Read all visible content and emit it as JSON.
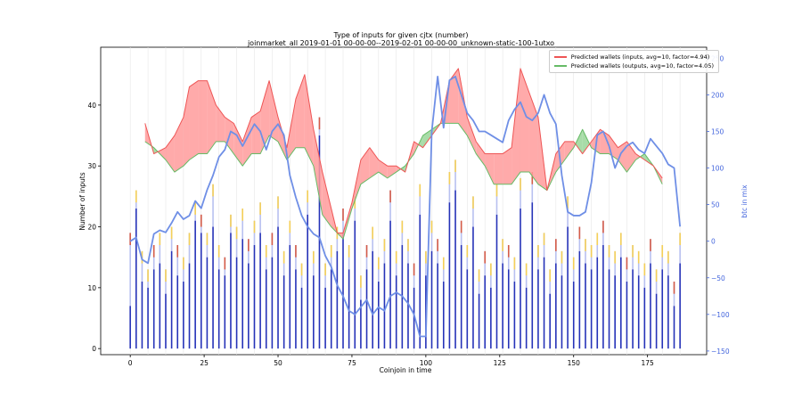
{
  "chart_data": {
    "type": "bar+line+area",
    "title": "Type of inputs for given cjtx (number)",
    "subtitle": "joinmarket_all 2019-01-01 00-00-00--2019-02-01 00-00-00_unknown-static-100-1utxo",
    "xlabel": "Coinjoin in time",
    "ylabel": "Number of inputs",
    "y2label": "btc in mix",
    "xlim": [
      -10,
      195
    ],
    "ylim": [
      -1,
      49.5
    ],
    "y2lim": [
      -155,
      265
    ],
    "xticks": [
      0,
      25,
      50,
      75,
      100,
      125,
      150,
      175
    ],
    "yticks": [
      0,
      10,
      20,
      30,
      40
    ],
    "y2ticks": [
      -150,
      -100,
      -50,
      0,
      50,
      100,
      150,
      200,
      250
    ],
    "legend_position": "top-right",
    "colors": {
      "inputs_line": "#ee5555",
      "inputs_fill": "#ff9b9b",
      "outputs_line": "#66bb66",
      "outputs_fill": "#99d699",
      "btc_line": "#6f8fe6",
      "bar_main": "#2633b8",
      "bar_light": "#b8c0f0",
      "bar_yellow": "#ffd23c",
      "bar_red": "#d94a2a"
    },
    "series": [
      {
        "name": "Predicted wallets (inputs, avg=10, factor=4.94)",
        "x": [
          5,
          8,
          12,
          15,
          18,
          20,
          23,
          26,
          29,
          32,
          35,
          38,
          41,
          44,
          47,
          50,
          53,
          56,
          59,
          62,
          65,
          68,
          70,
          72,
          75,
          78,
          81,
          84,
          87,
          90,
          93,
          96,
          99,
          102,
          105,
          108,
          111,
          114,
          117,
          120,
          123,
          126,
          129,
          132,
          135,
          138,
          141,
          144,
          147,
          150,
          153,
          156,
          159,
          162,
          165,
          168,
          171,
          174,
          177,
          180
        ],
        "values": [
          37,
          32,
          33,
          35,
          38,
          43,
          44,
          44,
          40,
          38,
          37,
          34,
          38,
          39,
          44,
          38,
          33,
          41,
          45,
          36,
          29,
          23,
          19,
          19,
          24,
          31,
          33,
          31,
          30,
          30,
          29,
          34,
          33,
          35,
          37,
          44,
          46,
          38,
          34,
          32,
          32,
          32,
          33,
          46,
          42,
          38,
          26,
          32,
          34,
          34,
          32,
          34,
          36,
          35,
          33,
          34,
          32,
          31,
          30,
          28
        ]
      },
      {
        "name": "Predicted wallets (outputs, avg=10, factor=4.05)",
        "x": [
          5,
          8,
          12,
          15,
          18,
          20,
          23,
          26,
          29,
          32,
          35,
          38,
          41,
          44,
          47,
          50,
          53,
          56,
          59,
          62,
          65,
          68,
          70,
          72,
          75,
          78,
          81,
          84,
          87,
          90,
          93,
          96,
          99,
          102,
          105,
          108,
          111,
          114,
          117,
          120,
          123,
          126,
          129,
          132,
          135,
          138,
          141,
          144,
          147,
          150,
          153,
          156,
          159,
          162,
          165,
          168,
          171,
          174,
          177,
          180
        ],
        "values": [
          34,
          33,
          31,
          29,
          30,
          31,
          32,
          32,
          34,
          34,
          32,
          30,
          32,
          32,
          35,
          34,
          31,
          33,
          33,
          30,
          22,
          20,
          19,
          18,
          23,
          27,
          28,
          29,
          28,
          29,
          30,
          32,
          35,
          36,
          37,
          37,
          37,
          35,
          32,
          30,
          27,
          27,
          27,
          29,
          29,
          27,
          26,
          29,
          31,
          33,
          36,
          33,
          32,
          32,
          31,
          29,
          31,
          32,
          30,
          27
        ]
      },
      {
        "name": "btc in mix",
        "axis": "right",
        "x": [
          0,
          2,
          4,
          6,
          8,
          10,
          12,
          14,
          16,
          18,
          20,
          22,
          24,
          26,
          28,
          30,
          32,
          34,
          36,
          38,
          40,
          42,
          44,
          46,
          48,
          50,
          52,
          54,
          56,
          58,
          60,
          62,
          64,
          66,
          68,
          70,
          72,
          74,
          76,
          78,
          80,
          82,
          84,
          86,
          88,
          90,
          92,
          94,
          96,
          98,
          100,
          102,
          104,
          106,
          108,
          110,
          112,
          114,
          116,
          118,
          120,
          122,
          124,
          126,
          128,
          130,
          132,
          134,
          136,
          138,
          140,
          142,
          144,
          146,
          148,
          150,
          152,
          154,
          156,
          158,
          160,
          162,
          164,
          166,
          168,
          170,
          172,
          174,
          176,
          178,
          180,
          182,
          184,
          186
        ],
        "values": [
          0,
          5,
          -25,
          -30,
          10,
          15,
          12,
          25,
          40,
          30,
          35,
          55,
          45,
          70,
          90,
          115,
          125,
          150,
          145,
          130,
          145,
          160,
          150,
          125,
          150,
          160,
          145,
          90,
          60,
          35,
          20,
          10,
          5,
          -20,
          -35,
          -60,
          -75,
          -95,
          -100,
          -90,
          -80,
          -100,
          -90,
          -95,
          -75,
          -70,
          -75,
          -85,
          -100,
          -130,
          -130,
          150,
          225,
          155,
          220,
          225,
          200,
          175,
          165,
          150,
          150,
          145,
          140,
          135,
          165,
          180,
          190,
          170,
          165,
          175,
          200,
          175,
          160,
          90,
          40,
          35,
          35,
          40,
          80,
          145,
          150,
          130,
          100,
          120,
          130,
          135,
          125,
          120,
          140,
          130,
          120,
          105,
          100,
          20
        ]
      },
      {
        "name": "bars",
        "type": "bar",
        "x": [
          0,
          2,
          4,
          6,
          8,
          10,
          12,
          14,
          16,
          18,
          20,
          22,
          24,
          26,
          28,
          30,
          32,
          34,
          36,
          38,
          40,
          42,
          44,
          46,
          48,
          50,
          52,
          54,
          56,
          58,
          60,
          62,
          64,
          66,
          68,
          70,
          72,
          74,
          76,
          78,
          80,
          82,
          84,
          86,
          88,
          90,
          92,
          94,
          96,
          98,
          100,
          102,
          104,
          106,
          108,
          110,
          112,
          114,
          116,
          118,
          120,
          122,
          124,
          126,
          128,
          130,
          132,
          134,
          136,
          138,
          140,
          142,
          144,
          146,
          148,
          150,
          152,
          154,
          156,
          158,
          160,
          162,
          164,
          166,
          168,
          170,
          172,
          174,
          176,
          178,
          180,
          182,
          184,
          186
        ],
        "values": [
          7,
          23,
          11,
          10,
          13,
          14,
          9,
          16,
          12,
          11,
          14,
          21,
          19,
          15,
          20,
          13,
          12,
          19,
          15,
          18,
          14,
          17,
          19,
          13,
          15,
          20,
          12,
          17,
          13,
          10,
          22,
          12,
          35,
          10,
          13,
          16,
          19,
          13,
          21,
          8,
          13,
          16,
          11,
          14,
          21,
          12,
          17,
          14,
          10,
          22,
          12,
          16,
          14,
          11,
          24,
          26,
          17,
          13,
          20,
          9,
          12,
          10,
          22,
          14,
          13,
          11,
          23,
          10,
          24,
          13,
          15,
          9,
          14,
          12,
          20,
          11,
          16,
          14,
          13,
          15,
          17,
          13,
          12,
          15,
          11,
          13,
          12,
          10,
          14,
          9,
          13,
          12,
          7,
          14
        ],
        "tops": [
          19,
          26,
          16,
          13,
          17,
          19,
          13,
          20,
          17,
          15,
          19,
          24,
          22,
          19,
          27,
          17,
          15,
          22,
          20,
          23,
          18,
          21,
          24,
          17,
          19,
          25,
          16,
          21,
          17,
          14,
          26,
          16,
          38,
          14,
          17,
          20,
          23,
          17,
          25,
          12,
          17,
          20,
          15,
          18,
          26,
          16,
          21,
          18,
          14,
          27,
          16,
          21,
          18,
          15,
          29,
          31,
          21,
          17,
          25,
          13,
          16,
          14,
          27,
          18,
          17,
          15,
          28,
          14,
          29,
          17,
          19,
          13,
          18,
          16,
          25,
          15,
          20,
          18,
          17,
          19,
          21,
          17,
          16,
          19,
          15,
          17,
          16,
          14,
          18,
          13,
          17,
          16,
          11,
          19
        ]
      }
    ]
  }
}
